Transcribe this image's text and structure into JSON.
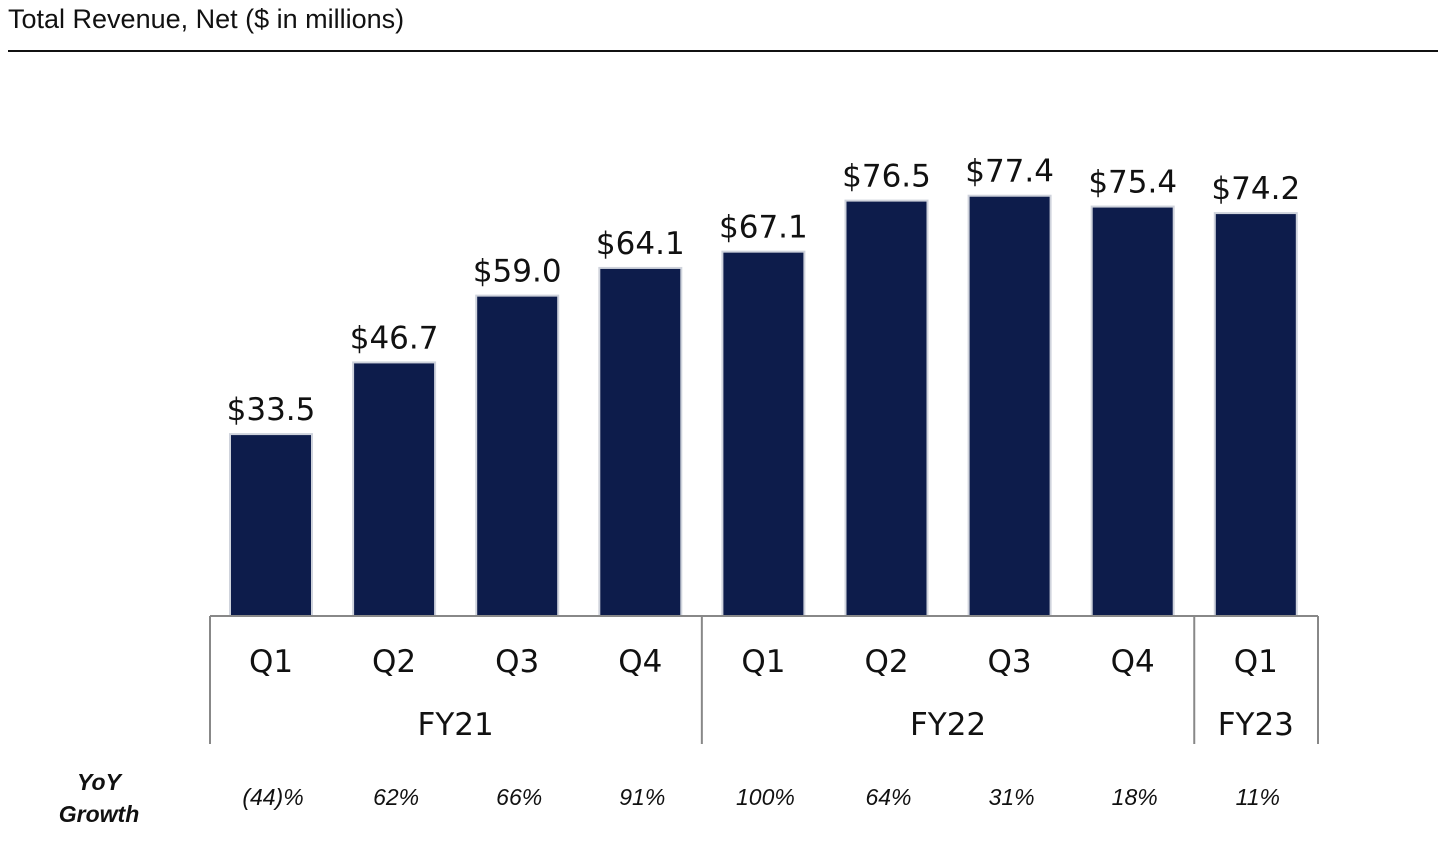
{
  "title": "Total Revenue, Net ($ in millions)",
  "chart_data": {
    "type": "bar",
    "title": "Total Revenue, Net ($ in millions)",
    "categories": [
      "Q1",
      "Q2",
      "Q3",
      "Q4",
      "Q1",
      "Q2",
      "Q3",
      "Q4",
      "Q1"
    ],
    "values": [
      33.5,
      46.7,
      59.0,
      64.1,
      67.1,
      76.5,
      77.4,
      75.4,
      74.2
    ],
    "value_labels": [
      "$33.5",
      "$46.7",
      "$59.0",
      "$64.1",
      "$67.1",
      "$76.5",
      "$77.4",
      "$75.4",
      "$74.2"
    ],
    "groups": [
      {
        "label": "FY21",
        "count": 4
      },
      {
        "label": "FY22",
        "count": 4
      },
      {
        "label": "FY23",
        "count": 1
      }
    ],
    "yoy_growth_label": [
      "YoY",
      "Growth"
    ],
    "yoy_growth": [
      "(44)%",
      "62%",
      "66%",
      "91%",
      "100%",
      "64%",
      "31%",
      "18%",
      "11%"
    ],
    "bar_color": "#0d1c4b",
    "ylim": [
      0,
      90
    ],
    "grid": false,
    "legend": "none"
  }
}
